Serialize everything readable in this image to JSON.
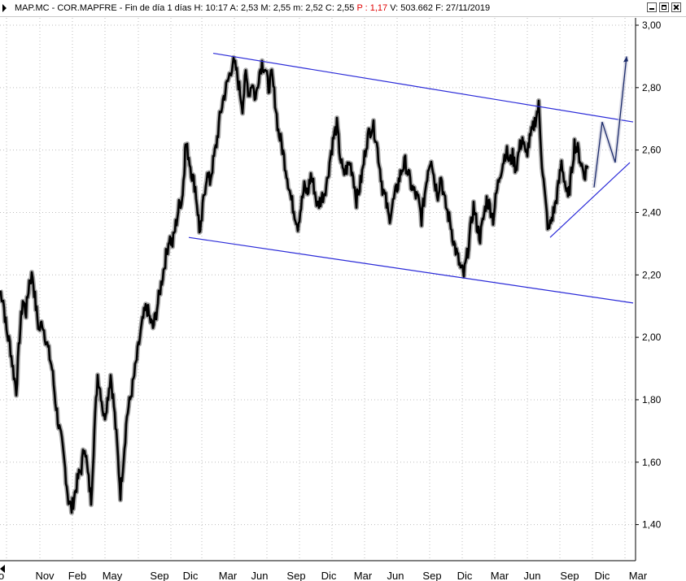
{
  "window": {
    "icons": {
      "system": "play-triangle-icon",
      "minimize": "minimize-icon",
      "maximize": "maximize-icon",
      "close": "close-icon"
    },
    "title": {
      "prefix": "MAP.MC - COR.MAPFRE - Fin de día 1 días  H: 10:17  A: 2,53  M: 2,55  m: 2,52  C: 2,55",
      "change": "P : 1,17",
      "suffix": "V: 503.662  F: 27/11/2019"
    }
  },
  "chart_data": {
    "type": "line",
    "style": "ohlc",
    "colors": {
      "price": "#000000",
      "trendlines": "#2a2ad8",
      "projection": "#1a2a6a",
      "grid": "#bdbdbd",
      "axis": "#000000"
    },
    "ylim": [
      1.3,
      3.0
    ],
    "y_ticks": [
      {
        "value": 3.0,
        "label": "3,00"
      },
      {
        "value": 2.8,
        "label": "2,80"
      },
      {
        "value": 2.6,
        "label": "2,60"
      },
      {
        "value": 2.4,
        "label": "2,40"
      },
      {
        "value": 2.2,
        "label": "2,20"
      },
      {
        "value": 2.0,
        "label": "2,00"
      },
      {
        "value": 1.8,
        "label": "1,80"
      },
      {
        "value": 1.6,
        "label": "1,60"
      },
      {
        "value": 1.4,
        "label": "1,40"
      }
    ],
    "x_ticks": [
      "go",
      "Nov",
      "Feb",
      "May",
      "Sep",
      "Dic",
      "Mar",
      "Jun",
      "Sep",
      "Dic",
      "Mar",
      "Jun",
      "Sep",
      "Dic",
      "Mar",
      "Jun",
      "Sep",
      "Dic",
      "Mar"
    ],
    "price_path": [
      [
        0,
        2.15
      ],
      [
        4,
        2.12
      ],
      [
        8,
        2.02
      ],
      [
        12,
        1.98
      ],
      [
        16,
        1.9
      ],
      [
        20,
        1.83
      ],
      [
        24,
        2.0
      ],
      [
        28,
        2.12
      ],
      [
        32,
        2.08
      ],
      [
        36,
        2.18
      ],
      [
        40,
        2.2
      ],
      [
        44,
        2.1
      ],
      [
        48,
        2.02
      ],
      [
        52,
        2.05
      ],
      [
        56,
        2.0
      ],
      [
        60,
        1.95
      ],
      [
        64,
        1.9
      ],
      [
        68,
        1.8
      ],
      [
        72,
        1.72
      ],
      [
        76,
        1.66
      ],
      [
        80,
        1.58
      ],
      [
        84,
        1.48
      ],
      [
        88,
        1.45
      ],
      [
        92,
        1.5
      ],
      [
        96,
        1.55
      ],
      [
        100,
        1.58
      ],
      [
        104,
        1.66
      ],
      [
        108,
        1.56
      ],
      [
        112,
        1.48
      ],
      [
        116,
        1.7
      ],
      [
        120,
        1.88
      ],
      [
        124,
        1.82
      ],
      [
        128,
        1.74
      ],
      [
        132,
        1.8
      ],
      [
        136,
        1.88
      ],
      [
        140,
        1.78
      ],
      [
        144,
        1.65
      ],
      [
        148,
        1.5
      ],
      [
        152,
        1.62
      ],
      [
        156,
        1.75
      ],
      [
        160,
        1.8
      ],
      [
        164,
        1.86
      ],
      [
        168,
        1.93
      ],
      [
        172,
        2.0
      ],
      [
        176,
        2.06
      ],
      [
        180,
        2.1
      ],
      [
        184,
        2.06
      ],
      [
        188,
        2.03
      ],
      [
        192,
        2.08
      ],
      [
        196,
        2.14
      ],
      [
        200,
        2.2
      ],
      [
        204,
        2.26
      ],
      [
        208,
        2.32
      ],
      [
        212,
        2.3
      ],
      [
        216,
        2.36
      ],
      [
        220,
        2.42
      ],
      [
        224,
        2.45
      ],
      [
        226,
        2.52
      ],
      [
        228,
        2.62
      ],
      [
        232,
        2.58
      ],
      [
        236,
        2.52
      ],
      [
        240,
        2.48
      ],
      [
        244,
        2.38
      ],
      [
        246,
        2.32
      ],
      [
        250,
        2.44
      ],
      [
        254,
        2.52
      ],
      [
        258,
        2.5
      ],
      [
        262,
        2.56
      ],
      [
        266,
        2.62
      ],
      [
        270,
        2.7
      ],
      [
        274,
        2.76
      ],
      [
        278,
        2.8
      ],
      [
        282,
        2.84
      ],
      [
        286,
        2.88
      ],
      [
        290,
        2.86
      ],
      [
        294,
        2.8
      ],
      [
        298,
        2.74
      ],
      [
        302,
        2.84
      ],
      [
        306,
        2.78
      ],
      [
        310,
        2.82
      ],
      [
        314,
        2.76
      ],
      [
        318,
        2.84
      ],
      [
        322,
        2.88
      ],
      [
        326,
        2.86
      ],
      [
        330,
        2.8
      ],
      [
        334,
        2.84
      ],
      [
        338,
        2.76
      ],
      [
        342,
        2.66
      ],
      [
        346,
        2.62
      ],
      [
        350,
        2.56
      ],
      [
        354,
        2.5
      ],
      [
        358,
        2.44
      ],
      [
        362,
        2.4
      ],
      [
        366,
        2.36
      ],
      [
        370,
        2.42
      ],
      [
        374,
        2.48
      ],
      [
        378,
        2.46
      ],
      [
        382,
        2.52
      ],
      [
        386,
        2.48
      ],
      [
        390,
        2.42
      ],
      [
        394,
        2.44
      ],
      [
        398,
        2.46
      ],
      [
        402,
        2.5
      ],
      [
        406,
        2.58
      ],
      [
        410,
        2.64
      ],
      [
        414,
        2.68
      ],
      [
        418,
        2.58
      ],
      [
        422,
        2.52
      ],
      [
        426,
        2.54
      ],
      [
        430,
        2.56
      ],
      [
        434,
        2.52
      ],
      [
        438,
        2.44
      ],
      [
        442,
        2.48
      ],
      [
        446,
        2.54
      ],
      [
        450,
        2.62
      ],
      [
        454,
        2.66
      ],
      [
        458,
        2.68
      ],
      [
        462,
        2.64
      ],
      [
        466,
        2.56
      ],
      [
        470,
        2.48
      ],
      [
        474,
        2.44
      ],
      [
        478,
        2.38
      ],
      [
        482,
        2.42
      ],
      [
        486,
        2.46
      ],
      [
        490,
        2.5
      ],
      [
        494,
        2.54
      ],
      [
        498,
        2.56
      ],
      [
        502,
        2.52
      ],
      [
        506,
        2.48
      ],
      [
        510,
        2.46
      ],
      [
        514,
        2.44
      ],
      [
        518,
        2.38
      ],
      [
        522,
        2.46
      ],
      [
        526,
        2.54
      ],
      [
        530,
        2.58
      ],
      [
        534,
        2.5
      ],
      [
        538,
        2.46
      ],
      [
        542,
        2.52
      ],
      [
        546,
        2.44
      ],
      [
        550,
        2.4
      ],
      [
        554,
        2.36
      ],
      [
        558,
        2.3
      ],
      [
        562,
        2.26
      ],
      [
        566,
        2.22
      ],
      [
        570,
        2.2
      ],
      [
        574,
        2.26
      ],
      [
        578,
        2.34
      ],
      [
        582,
        2.42
      ],
      [
        586,
        2.36
      ],
      [
        590,
        2.32
      ],
      [
        594,
        2.38
      ],
      [
        598,
        2.44
      ],
      [
        602,
        2.42
      ],
      [
        606,
        2.38
      ],
      [
        610,
        2.46
      ],
      [
        614,
        2.52
      ],
      [
        618,
        2.56
      ],
      [
        622,
        2.6
      ],
      [
        626,
        2.56
      ],
      [
        630,
        2.58
      ],
      [
        634,
        2.54
      ],
      [
        638,
        2.6
      ],
      [
        642,
        2.64
      ],
      [
        646,
        2.58
      ],
      [
        650,
        2.62
      ],
      [
        654,
        2.66
      ],
      [
        658,
        2.7
      ],
      [
        662,
        2.74
      ],
      [
        666,
        2.56
      ],
      [
        670,
        2.44
      ],
      [
        674,
        2.34
      ],
      [
        678,
        2.38
      ],
      [
        682,
        2.42
      ],
      [
        686,
        2.48
      ],
      [
        690,
        2.56
      ],
      [
        694,
        2.5
      ],
      [
        698,
        2.44
      ],
      [
        702,
        2.52
      ],
      [
        706,
        2.62
      ],
      [
        710,
        2.6
      ],
      [
        714,
        2.56
      ],
      [
        718,
        2.52
      ],
      [
        722,
        2.55
      ]
    ],
    "trendlines": [
      {
        "name": "upper-channel",
        "from": [
          262,
          2.91
        ],
        "to": [
          778,
          2.69
        ]
      },
      {
        "name": "lower-channel",
        "from": [
          232,
          2.32
        ],
        "to": [
          778,
          2.11
        ]
      },
      {
        "name": "support-line",
        "from": [
          676,
          2.32
        ],
        "to": [
          774,
          2.56
        ]
      }
    ],
    "projection_path": [
      [
        730,
        2.48
      ],
      [
        740,
        2.69
      ],
      [
        756,
        2.56
      ],
      [
        770,
        2.9
      ]
    ]
  }
}
